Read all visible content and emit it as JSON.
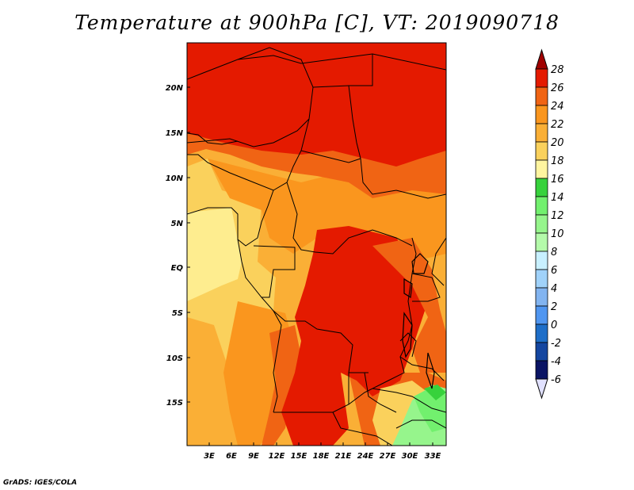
{
  "title": "Temperature at 900hPa [C], VT: 2019090718",
  "footer": "GrADS: IGES/COLA",
  "map": {
    "lat_ticks": [
      "20N",
      "15N",
      "10N",
      "5N",
      "EQ",
      "5S",
      "10S",
      "15S"
    ],
    "lon_ticks": [
      "3E",
      "6E",
      "9E",
      "12E",
      "15E",
      "18E",
      "21E",
      "24E",
      "27E",
      "30E",
      "33E"
    ]
  },
  "colorbar": {
    "labels": [
      "28",
      "26",
      "24",
      "22",
      "20",
      "18",
      "16",
      "14",
      "12",
      "10",
      "8",
      "6",
      "4",
      "2",
      "0",
      "-2",
      "-4",
      "-6"
    ],
    "colors": [
      "#a00000",
      "#e41a00",
      "#f06414",
      "#fa961e",
      "#faaf36",
      "#fad15c",
      "#fff5a0",
      "#37d23c",
      "#72f06e",
      "#96f58c",
      "#b4faaa",
      "#c8f0ff",
      "#a0d2fa",
      "#82b4f0",
      "#5096f0",
      "#1e6ec8",
      "#1446a0",
      "#0a1464",
      "#e1e1ff"
    ]
  }
}
